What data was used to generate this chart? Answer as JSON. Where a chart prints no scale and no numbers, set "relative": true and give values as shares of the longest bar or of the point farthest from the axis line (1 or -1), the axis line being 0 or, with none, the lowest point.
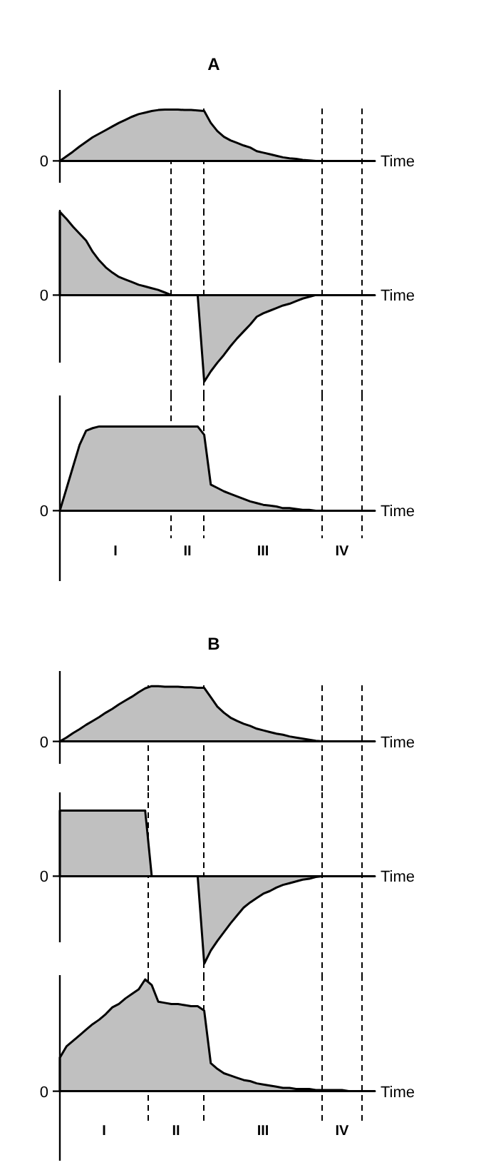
{
  "chart_data": [
    {
      "type": "area",
      "title": "A",
      "xlabel": "Time",
      "relative": true,
      "grid": "x",
      "categories": [
        null,
        null,
        null,
        null,
        null,
        null,
        null,
        null,
        null,
        null,
        null,
        null,
        null,
        null,
        null,
        null,
        null,
        null,
        null,
        null,
        null,
        null,
        null,
        null,
        null,
        null,
        null,
        null,
        null,
        null,
        null,
        null,
        null,
        null,
        null,
        null,
        null,
        null,
        null,
        null,
        null,
        null,
        null,
        null,
        null,
        null,
        null,
        null,
        null
      ],
      "series": [
        {
          "color": "#c0c0c0",
          "values": [
            0,
            0.09,
            0.18,
            0.28,
            0.37,
            0.46,
            0.53,
            0.6,
            0.67,
            0.74,
            0.8,
            0.86,
            0.91,
            0.94,
            0.97,
            0.99,
            1,
            1,
            1,
            0.99,
            0.99,
            0.98,
            0.97,
            0.74,
            0.58,
            0.47,
            0.4,
            0.35,
            0.3,
            0.26,
            0.19,
            0.16,
            0.13,
            0.1,
            0.07,
            0.05,
            0.04,
            0.02,
            0.01,
            0,
            0,
            0,
            0,
            0,
            0,
            0,
            0,
            0,
            0
          ]
        }
      ],
      "annotations": [
        "0"
      ]
    },
    {
      "type": "area",
      "xlabel": "Time",
      "relative": true,
      "categories": [
        null,
        null,
        null,
        null,
        null,
        null,
        null,
        null,
        null,
        null,
        null,
        null,
        null,
        null,
        null,
        null,
        null,
        null,
        null,
        null,
        null,
        null,
        null,
        null,
        null,
        null,
        null,
        null,
        null,
        null,
        null,
        null,
        null,
        null,
        null,
        null,
        null,
        null,
        null,
        null,
        null,
        null,
        null,
        null,
        null,
        null,
        null,
        null,
        null
      ],
      "grid": "x",
      "series": [
        {
          "color": "#c0c0c0",
          "values": [
            0.96,
            0.88,
            0.79,
            0.71,
            0.63,
            0.5,
            0.4,
            0.32,
            0.26,
            0.21,
            0.18,
            0.15,
            0.12,
            0.1,
            0.08,
            0.06,
            0.03,
            0,
            0,
            0,
            0,
            0,
            -1,
            -0.88,
            -0.78,
            -0.69,
            -0.59,
            -0.5,
            -0.42,
            -0.34,
            -0.25,
            -0.21,
            -0.18,
            -0.15,
            -0.12,
            -0.1,
            -0.07,
            -0.04,
            -0.02,
            0,
            0,
            0,
            0,
            0,
            0,
            0,
            0,
            0,
            0
          ]
        }
      ],
      "annotations": [
        "0"
      ]
    },
    {
      "type": "area",
      "xlabel": "Time",
      "relative": true,
      "categories": [
        null,
        null,
        null,
        null,
        null,
        null,
        null,
        null,
        null,
        null,
        null,
        null,
        null,
        null,
        null,
        null,
        null,
        null,
        null,
        null,
        null,
        null,
        null,
        null,
        null,
        null,
        null,
        null,
        null,
        null,
        null,
        null,
        null,
        null,
        null,
        null,
        null,
        null,
        null,
        null,
        null,
        null,
        null,
        null,
        null,
        null,
        null,
        null,
        null
      ],
      "grid": "x",
      "series": [
        {
          "color": "#c0c0c0",
          "values": [
            0,
            0.26,
            0.52,
            0.78,
            0.95,
            0.98,
            1,
            1,
            1,
            1,
            1,
            1,
            1,
            1,
            1,
            1,
            1,
            1,
            1,
            1,
            1,
            1,
            0.9,
            0.31,
            0.27,
            0.23,
            0.2,
            0.17,
            0.14,
            0.11,
            0.09,
            0.07,
            0.06,
            0.05,
            0.03,
            0.03,
            0.02,
            0.01,
            0.01,
            0,
            0,
            0,
            0,
            0,
            0,
            0,
            0,
            0,
            0
          ]
        }
      ],
      "annotations": [
        "0",
        "I",
        "II",
        "III",
        "IV"
      ]
    },
    {
      "type": "area",
      "title": "B",
      "xlabel": "Time",
      "relative": true,
      "grid": "x",
      "categories": [
        null,
        null,
        null,
        null,
        null,
        null,
        null,
        null,
        null,
        null,
        null,
        null,
        null,
        null,
        null,
        null,
        null,
        null,
        null,
        null,
        null,
        null,
        null,
        null,
        null,
        null,
        null,
        null,
        null,
        null,
        null,
        null,
        null,
        null,
        null,
        null,
        null,
        null,
        null,
        null,
        null,
        null,
        null,
        null,
        null,
        null,
        null,
        null,
        null
      ],
      "series": [
        {
          "color": "#c0c0c0",
          "values": [
            0,
            0.07,
            0.15,
            0.22,
            0.3,
            0.37,
            0.44,
            0.52,
            0.59,
            0.67,
            0.74,
            0.81,
            0.89,
            0.96,
            1,
            1,
            0.99,
            0.99,
            0.99,
            0.98,
            0.98,
            0.97,
            0.97,
            0.8,
            0.63,
            0.52,
            0.43,
            0.37,
            0.32,
            0.28,
            0.23,
            0.2,
            0.17,
            0.14,
            0.12,
            0.09,
            0.07,
            0.05,
            0.03,
            0.01,
            0,
            0,
            0,
            0,
            0,
            0,
            0,
            0,
            0
          ]
        }
      ],
      "annotations": [
        "0"
      ]
    },
    {
      "type": "area",
      "xlabel": "Time",
      "relative": true,
      "categories": [
        null,
        null,
        null,
        null,
        null,
        null,
        null,
        null,
        null,
        null,
        null,
        null,
        null,
        null,
        null,
        null,
        null,
        null,
        null,
        null,
        null,
        null,
        null,
        null,
        null,
        null,
        null,
        null,
        null,
        null,
        null,
        null,
        null,
        null,
        null,
        null,
        null,
        null,
        null,
        null,
        null,
        null,
        null,
        null,
        null,
        null,
        null,
        null,
        null
      ],
      "grid": "x",
      "series": [
        {
          "color": "#c0c0c0",
          "values": [
            0.75,
            0.75,
            0.75,
            0.75,
            0.75,
            0.75,
            0.75,
            0.75,
            0.75,
            0.75,
            0.75,
            0.75,
            0.75,
            0.75,
            0,
            0,
            0,
            0,
            0,
            0,
            0,
            0,
            -1,
            -0.85,
            -0.74,
            -0.64,
            -0.54,
            -0.45,
            -0.36,
            -0.3,
            -0.25,
            -0.2,
            -0.17,
            -0.13,
            -0.1,
            -0.08,
            -0.06,
            -0.04,
            -0.03,
            -0.01,
            0,
            0,
            0,
            0,
            0,
            0,
            0,
            0,
            0
          ]
        }
      ],
      "annotations": [
        "0"
      ]
    },
    {
      "type": "area",
      "xlabel": "Time",
      "relative": true,
      "categories": [
        null,
        null,
        null,
        null,
        null,
        null,
        null,
        null,
        null,
        null,
        null,
        null,
        null,
        null,
        null,
        null,
        null,
        null,
        null,
        null,
        null,
        null,
        null,
        null,
        null,
        null,
        null,
        null,
        null,
        null,
        null,
        null,
        null,
        null,
        null,
        null,
        null,
        null,
        null,
        null,
        null,
        null,
        null,
        null,
        null,
        null,
        null,
        null,
        null
      ],
      "grid": "x",
      "series": [
        {
          "color": "#c0c0c0",
          "values": [
            0.3,
            0.4,
            0.45,
            0.5,
            0.55,
            0.6,
            0.64,
            0.69,
            0.75,
            0.78,
            0.83,
            0.87,
            0.91,
            1,
            0.95,
            0.8,
            0.79,
            0.78,
            0.78,
            0.77,
            0.76,
            0.76,
            0.72,
            0.25,
            0.2,
            0.16,
            0.14,
            0.12,
            0.1,
            0.09,
            0.07,
            0.06,
            0.05,
            0.04,
            0.03,
            0.03,
            0.02,
            0.02,
            0.02,
            0.01,
            0.01,
            0.01,
            0.01,
            0.01,
            0,
            0,
            0,
            0,
            0
          ]
        }
      ],
      "annotations": [
        "0",
        "I",
        "II",
        "III",
        "IV"
      ]
    }
  ]
}
